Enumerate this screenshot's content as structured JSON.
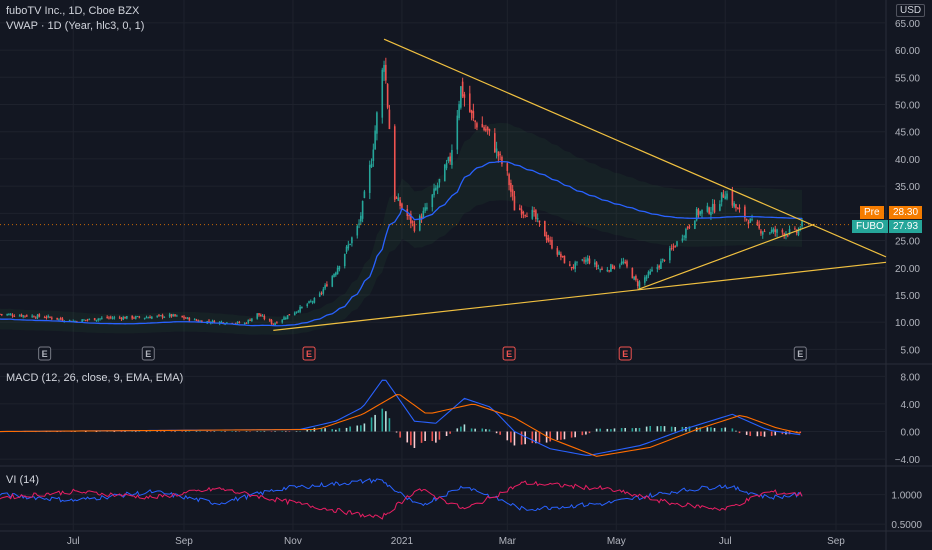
{
  "header": {
    "symbol_line": "fuboTV Inc., 1D, Cboe BZX",
    "vwap_line": "VWAP · 1D (Year, hlc3, 0, 1)",
    "macd_line": "MACD (12, 26, close, 9, EMA, EMA)",
    "vi_line": "VI (14)",
    "currency": "USD"
  },
  "price_tags": {
    "pre_label": "Pre",
    "pre_value": "28.30",
    "ticker_label": "FUBO",
    "ticker_value": "27.93"
  },
  "colors": {
    "background": "#131722",
    "up": "#26a69a",
    "down": "#ef5350",
    "vwap": "#2962ff",
    "trendline": "#f0c040",
    "pre": "#f57c00",
    "macd": "#2962ff",
    "signal": "#ff6d00",
    "vi_plus": "#2962ff",
    "vi_minus": "#e91e63"
  },
  "chart_data": [
    {
      "type": "candlestick",
      "title": "fuboTV Inc., 1D, Cboe BZX",
      "x_ticks": [
        "Jul",
        "Sep",
        "Nov",
        "2021",
        "Mar",
        "May",
        "Jul",
        "Sep"
      ],
      "y_ticks": [
        5,
        10,
        15,
        20,
        25,
        30,
        35,
        40,
        45,
        50,
        55,
        60,
        65
      ],
      "y_tick_labels": [
        "5.00",
        "10.00",
        "15.00",
        "20.00",
        "25.00",
        "30.00",
        "35.00",
        "40.00",
        "45.00",
        "50.00",
        "55.00",
        "60.00",
        "65.00"
      ],
      "ylim": [
        2.5,
        67
      ],
      "xlim": [
        "2020-05-21",
        "2021-09-29"
      ],
      "close_key_points": [
        [
          "2020-05-21",
          11.5
        ],
        [
          "2020-06-15",
          11.0
        ],
        [
          "2020-07-01",
          10.2
        ],
        [
          "2020-07-20",
          10.8
        ],
        [
          "2020-08-10",
          10.9
        ],
        [
          "2020-08-25",
          11.2
        ],
        [
          "2020-09-10",
          10.2
        ],
        [
          "2020-10-05",
          9.8
        ],
        [
          "2020-10-12",
          11.5
        ],
        [
          "2020-10-21",
          9.7
        ],
        [
          "2020-11-05",
          12.5
        ],
        [
          "2020-11-15",
          14.5
        ],
        [
          "2020-11-25",
          19.5
        ],
        [
          "2020-12-08",
          28.0
        ],
        [
          "2020-12-15",
          40.0
        ],
        [
          "2020-12-22",
          58.5
        ],
        [
          "2020-12-28",
          33.0
        ],
        [
          "2021-01-08",
          27.5
        ],
        [
          "2021-01-15",
          31.0
        ],
        [
          "2021-01-28",
          40.0
        ],
        [
          "2021-02-03",
          53.0
        ],
        [
          "2021-02-10",
          47.0
        ],
        [
          "2021-02-18",
          45.0
        ],
        [
          "2021-03-01",
          37.0
        ],
        [
          "2021-03-05",
          31.0
        ],
        [
          "2021-03-15",
          30.0
        ],
        [
          "2021-03-25",
          24.5
        ],
        [
          "2021-04-05",
          20.0
        ],
        [
          "2021-04-15",
          21.5
        ],
        [
          "2021-04-23",
          19.5
        ],
        [
          "2021-05-05",
          21.0
        ],
        [
          "2021-05-13",
          17.0
        ],
        [
          "2021-05-25",
          20.5
        ],
        [
          "2021-06-05",
          25.0
        ],
        [
          "2021-06-15",
          30.0
        ],
        [
          "2021-06-25",
          31.0
        ],
        [
          "2021-07-01",
          34.0
        ],
        [
          "2021-07-08",
          30.5
        ],
        [
          "2021-07-20",
          27.0
        ],
        [
          "2021-08-01",
          26.5
        ],
        [
          "2021-08-10",
          26.5
        ],
        [
          "2021-08-13",
          27.93
        ]
      ],
      "earnings_markers": [
        {
          "date": "2020-06-15",
          "label": "E",
          "style": "past"
        },
        {
          "date": "2020-08-12",
          "label": "E",
          "style": "past"
        },
        {
          "date": "2020-11-10",
          "label": "E",
          "style": "red"
        },
        {
          "date": "2021-03-02",
          "label": "E",
          "style": "red"
        },
        {
          "date": "2021-05-06",
          "label": "E",
          "style": "red"
        },
        {
          "date": "2021-08-12",
          "label": "E",
          "style": "past"
        }
      ],
      "trendlines": [
        {
          "from": [
            "2020-12-22",
            62.0
          ],
          "to": [
            "2021-09-29",
            22.0
          ]
        },
        {
          "from": [
            "2020-10-21",
            8.5
          ],
          "to": [
            "2021-09-29",
            21.0
          ]
        },
        {
          "from": [
            "2021-05-13",
            16.0
          ],
          "to": [
            "2021-08-20",
            28.0
          ]
        }
      ],
      "last_price": 27.93,
      "pre_market": 28.3
    },
    {
      "type": "line",
      "title": "MACD (12, 26, close, 9, EMA, EMA)",
      "y_ticks": [
        -4,
        0,
        4,
        8
      ],
      "y_tick_labels": [
        "−4.00",
        "0.00",
        "4.00",
        "8.00"
      ],
      "ylim": [
        -5,
        9.5
      ],
      "series": [
        {
          "key": "macd",
          "values": [
            [
              "2020-05-21",
              0
            ],
            [
              "2020-11-05",
              0.3
            ],
            [
              "2020-11-25",
              1.5
            ],
            [
              "2020-12-10",
              3.5
            ],
            [
              "2020-12-22",
              7.8
            ],
            [
              "2021-01-08",
              1.5
            ],
            [
              "2021-01-20",
              1.2
            ],
            [
              "2021-02-05",
              4.8
            ],
            [
              "2021-02-20",
              3.5
            ],
            [
              "2021-03-05",
              0.0
            ],
            [
              "2021-03-25",
              -2.5
            ],
            [
              "2021-04-15",
              -3.5
            ],
            [
              "2021-05-15",
              -2.0
            ],
            [
              "2021-06-10",
              0.5
            ],
            [
              "2021-07-05",
              2.5
            ],
            [
              "2021-07-25",
              0.2
            ],
            [
              "2021-08-13",
              -0.5
            ]
          ]
        },
        {
          "key": "signal",
          "values": [
            [
              "2020-05-21",
              0
            ],
            [
              "2020-11-15",
              0.3
            ],
            [
              "2020-12-10",
              2.5
            ],
            [
              "2020-12-30",
              5.5
            ],
            [
              "2021-01-15",
              2.5
            ],
            [
              "2021-02-10",
              4.0
            ],
            [
              "2021-03-05",
              2.0
            ],
            [
              "2021-03-25",
              -1.0
            ],
            [
              "2021-04-20",
              -3.6
            ],
            [
              "2021-05-20",
              -2.3
            ],
            [
              "2021-06-15",
              0.3
            ],
            [
              "2021-07-10",
              2.4
            ],
            [
              "2021-07-30",
              0.5
            ],
            [
              "2021-08-13",
              -0.3
            ]
          ]
        }
      ]
    },
    {
      "type": "line",
      "title": "VI (14)",
      "y_ticks": [
        0.5,
        1.0
      ],
      "y_tick_labels": [
        "0.5000",
        "1.0000"
      ],
      "ylim": [
        0.4,
        1.45
      ],
      "series": [
        {
          "key": "vi_plus",
          "values": [
            [
              "2020-05-21",
              1.0
            ],
            [
              "2020-07-01",
              0.9
            ],
            [
              "2020-08-15",
              1.05
            ],
            [
              "2020-09-20",
              0.85
            ],
            [
              "2020-10-25",
              1.1
            ],
            [
              "2020-12-20",
              1.25
            ],
            [
              "2021-01-10",
              0.8
            ],
            [
              "2021-02-05",
              1.15
            ],
            [
              "2021-03-10",
              0.75
            ],
            [
              "2021-04-25",
              0.85
            ],
            [
              "2021-06-01",
              1.05
            ],
            [
              "2021-07-01",
              1.15
            ],
            [
              "2021-07-25",
              0.95
            ],
            [
              "2021-08-13",
              1.0
            ]
          ]
        },
        {
          "key": "vi_minus",
          "values": [
            [
              "2020-05-21",
              0.95
            ],
            [
              "2020-07-01",
              1.05
            ],
            [
              "2020-08-15",
              0.95
            ],
            [
              "2020-09-20",
              1.1
            ],
            [
              "2020-10-25",
              0.9
            ],
            [
              "2020-12-20",
              0.6
            ],
            [
              "2021-01-10",
              1.1
            ],
            [
              "2021-02-05",
              0.75
            ],
            [
              "2021-03-10",
              1.2
            ],
            [
              "2021-04-25",
              1.1
            ],
            [
              "2021-06-01",
              0.85
            ],
            [
              "2021-07-01",
              0.75
            ],
            [
              "2021-07-25",
              1.05
            ],
            [
              "2021-08-13",
              1.0
            ]
          ]
        }
      ]
    }
  ]
}
